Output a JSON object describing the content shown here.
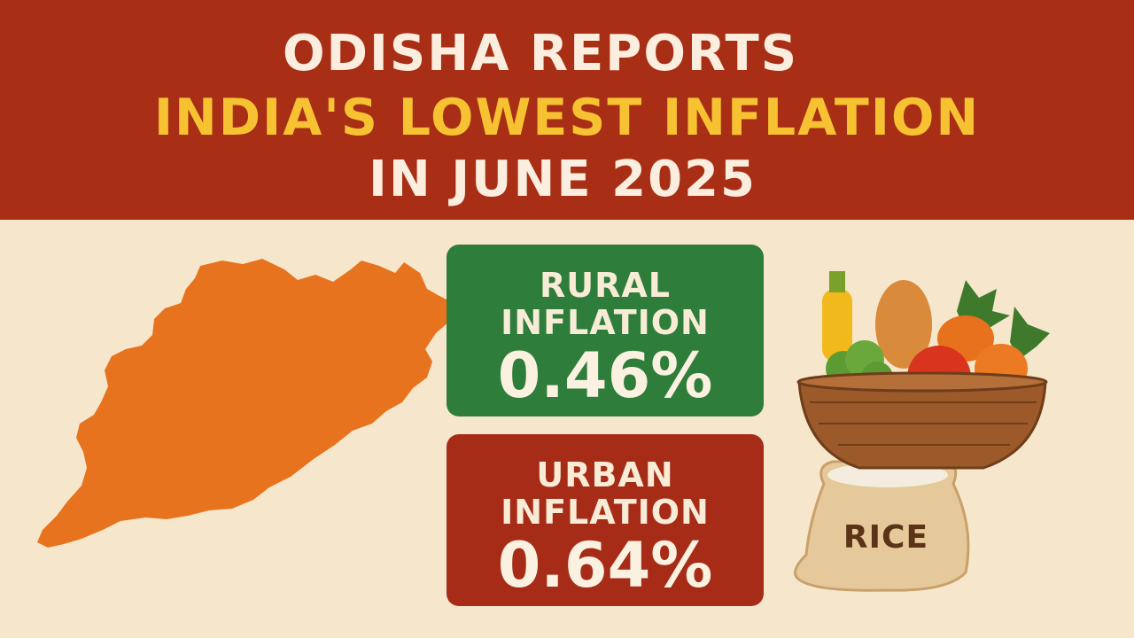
{
  "headline": {
    "line1": "ODISHA REPORTS",
    "line2": "INDIA'S LOWEST INFLATION",
    "line3": "IN JUNE 2025"
  },
  "cards": {
    "rural": {
      "label_line1": "RURAL",
      "label_line2": "INFLATION",
      "value": "0.46%"
    },
    "urban": {
      "label_line1": "URBAN",
      "label_line2": "INFLATION",
      "value": "0.64%"
    }
  },
  "illustration": {
    "sack_label": "RICE"
  },
  "colors": {
    "banner": "#a82e16",
    "headline_highlight": "#f6c232",
    "background": "#f6e7cc",
    "map": "#e8731e",
    "rural_card": "#2e7d3a",
    "urban_card": "#a62c18"
  },
  "icons": [
    "odisha-map",
    "vegetable-basket-icon",
    "rice-sack-icon"
  ]
}
